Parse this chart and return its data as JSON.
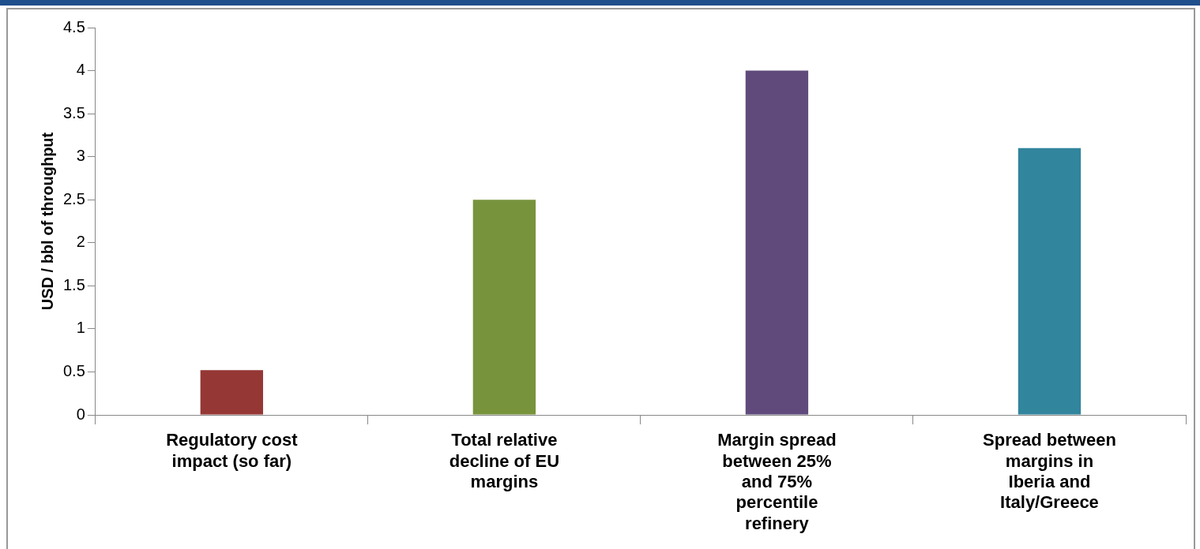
{
  "chart_data": {
    "type": "bar",
    "ylabel": "USD / bbl of throughput",
    "categories": [
      "Regulatory cost impact (so far)",
      "Total relative decline of EU margins",
      "Margin spread between 25% and 75% percentile refinery",
      "Spread between margins in Iberia and Italy/Greece"
    ],
    "values": [
      0.52,
      2.5,
      4.0,
      3.1
    ],
    "colors": [
      "#953735",
      "#77933c",
      "#604a7b",
      "#31859c"
    ],
    "ylim": [
      0,
      4.5
    ],
    "yticks": [
      0,
      0.5,
      1,
      1.5,
      2,
      2.5,
      3,
      3.5,
      4,
      4.5
    ],
    "grid": false,
    "legend": false
  }
}
